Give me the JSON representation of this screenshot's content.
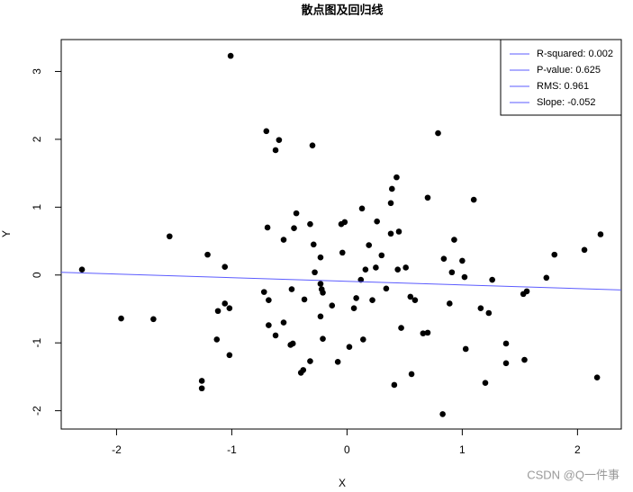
{
  "chart_data": {
    "type": "scatter",
    "title": "散点图及回归线",
    "x_label": "X",
    "y_label": "Y",
    "xlim": [
      -2.48,
      2.38
    ],
    "ylim": [
      -2.27,
      3.47
    ],
    "xticks": [
      -2,
      -1,
      0,
      1,
      2
    ],
    "yticks": [
      -2,
      -1,
      0,
      1,
      2,
      3
    ],
    "color": "#000000",
    "x": [
      -2.3,
      -1.96,
      -1.68,
      -1.54,
      -1.26,
      -1.26,
      -1.21,
      -1.13,
      -1.12,
      -1.06,
      -1.06,
      -1.02,
      -1.02,
      -1.01,
      -0.72,
      -0.7,
      -0.69,
      -0.68,
      -0.68,
      -0.62,
      -0.62,
      -0.59,
      -0.55,
      -0.55,
      -0.49,
      -0.48,
      -0.47,
      -0.46,
      -0.44,
      -0.4,
      -0.38,
      -0.37,
      -0.32,
      -0.32,
      -0.3,
      -0.29,
      -0.28,
      -0.23,
      -0.23,
      -0.23,
      -0.22,
      -0.21,
      -0.21,
      -0.13,
      -0.08,
      -0.05,
      -0.04,
      -0.02,
      0.02,
      0.06,
      0.08,
      0.12,
      0.13,
      0.14,
      0.16,
      0.19,
      0.22,
      0.25,
      0.26,
      0.3,
      0.34,
      0.38,
      0.38,
      0.39,
      0.41,
      0.43,
      0.44,
      0.45,
      0.47,
      0.51,
      0.55,
      0.56,
      0.59,
      0.66,
      0.7,
      0.7,
      0.79,
      0.84,
      0.83,
      0.89,
      0.91,
      0.93,
      1.0,
      1.02,
      1.03,
      1.1,
      1.16,
      1.2,
      1.23,
      1.26,
      1.38,
      1.38,
      1.54,
      1.53,
      1.56,
      1.73,
      1.8,
      2.06,
      2.17,
      2.2
    ],
    "values": [
      0.08,
      -0.64,
      -0.65,
      0.57,
      -1.56,
      -1.67,
      0.3,
      -0.95,
      -0.53,
      0.12,
      -0.42,
      -0.49,
      -1.18,
      3.23,
      -0.25,
      2.12,
      0.7,
      -0.37,
      -0.74,
      -0.89,
      1.84,
      1.99,
      -0.7,
      0.52,
      -1.03,
      -0.21,
      -1.01,
      0.69,
      0.91,
      -1.44,
      -1.4,
      -0.36,
      0.75,
      -1.27,
      1.91,
      0.45,
      0.04,
      -0.61,
      0.26,
      -0.13,
      -0.21,
      -0.26,
      -0.94,
      -0.45,
      -1.28,
      0.75,
      0.33,
      0.78,
      -1.06,
      -0.49,
      -0.34,
      -0.07,
      0.98,
      -0.95,
      0.08,
      0.44,
      -0.37,
      0.11,
      0.79,
      0.29,
      -0.2,
      0.61,
      1.06,
      1.27,
      -1.62,
      1.44,
      0.08,
      0.64,
      -0.78,
      0.11,
      -0.32,
      -1.46,
      -0.37,
      -0.86,
      1.14,
      -0.85,
      2.09,
      0.24,
      -2.05,
      -0.42,
      0.04,
      0.52,
      0.21,
      -0.03,
      -1.09,
      1.11,
      -0.49,
      -1.59,
      -0.56,
      -0.07,
      -1.01,
      -1.3,
      -1.25,
      -0.28,
      -0.24,
      -0.04,
      0.3,
      0.37,
      -1.51,
      0.6
    ],
    "regression": {
      "color": "#5b5bff",
      "x": [
        -2.48,
        2.38
      ],
      "values": [
        0.04,
        -0.22
      ]
    },
    "legend_position": "topright",
    "legend": [
      "R-squared: 0.002",
      "P-value: 0.625",
      "RMS: 0.961",
      "Slope: -0.052"
    ],
    "watermark": "CSDN @Q一件事"
  }
}
